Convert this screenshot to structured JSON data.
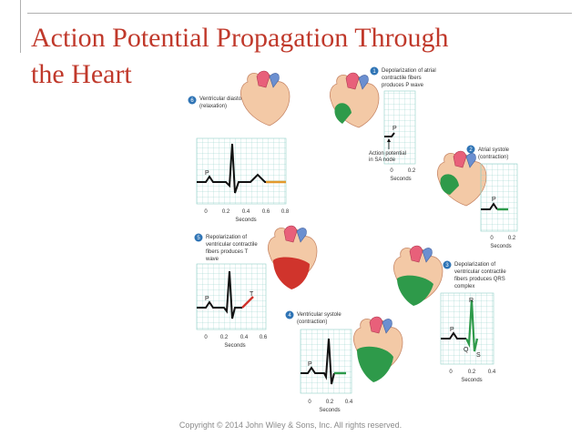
{
  "slide": {
    "title_line1": "Action Potential Propagation Through",
    "title_line2": "the Heart",
    "copyright": "Copyright © 2014 John Wiley & Sons, Inc. All rights reserved."
  },
  "steps": [
    {
      "number": "1",
      "label_line1": "Depolarization of atrial",
      "label_line2": "contractile fibers",
      "label_line3": "produces P wave"
    },
    {
      "number": "2",
      "label_line1": "Atrial systole",
      "label_line2": "(contraction)",
      "label_line3": ""
    },
    {
      "number": "3",
      "label_line1": "Depolarization of",
      "label_line2": "ventricular contractile",
      "label_line3": "fibers produces QRS",
      "label_line4": "complex"
    },
    {
      "number": "4",
      "label_line1": "Ventricular systole",
      "label_line2": "(contraction)",
      "label_line3": ""
    },
    {
      "number": "5",
      "label_line1": "Repolarization of",
      "label_line2": "ventricular contractile",
      "label_line3": "fibers produces T",
      "label_line4": "wave"
    },
    {
      "number": "6",
      "label_line1": "Ventricular diastole",
      "label_line2": "(relaxation)",
      "label_line3": ""
    }
  ],
  "annotations": {
    "sa_node_line1": "Action potential",
    "sa_node_line2": "in SA node"
  },
  "wave_labels": {
    "p": "P",
    "q": "Q",
    "r": "R",
    "s": "S",
    "t": "T"
  },
  "axes": {
    "seconds": "Seconds",
    "ticks_short": [
      "0",
      "0.2"
    ],
    "ticks_mid": [
      "0",
      "0.2",
      "0.4"
    ],
    "ticks_long": [
      "0",
      "0.2",
      "0.4",
      "0.6"
    ],
    "ticks_full": [
      "0",
      "0.2",
      "0.4",
      "0.6",
      "0.8"
    ]
  },
  "colors": {
    "title": "#c0392b",
    "grid": "#8fd0c8",
    "ecg": "#111111",
    "step_badge": "#2f74b5",
    "highlight_green": "#2e9a4a",
    "highlight_red": "#d0342c",
    "highlight_orange": "#e39a2d"
  }
}
